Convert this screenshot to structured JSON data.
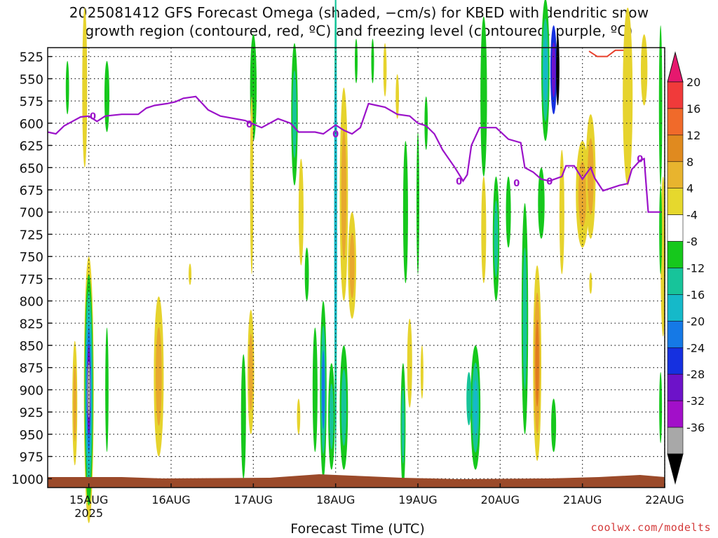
{
  "header": {
    "title_line1": "2025081412 GFS Forecast Omega (shaded, −cm/s) for KBED with dendritic snow",
    "title_line2": "growth region (contoured, red, ºC) and freezing level (contoured, purple, ºC)"
  },
  "footer": {
    "xlabel": "Forecast Time (UTC)",
    "credit": "coolwx.com/modelts"
  },
  "colors": {
    "yellow": "#e6d32d",
    "orange_light": "#e8a82e",
    "orange": "#e07b1f",
    "green": "#16c81c",
    "teal": "#17c49a",
    "cyan": "#15b9c9",
    "blue": "#1579e6",
    "dblue": "#1530e0",
    "purple": "#6d12c9",
    "violet": "#a20fc9",
    "gray": "#a8a8a8",
    "black": "#000000",
    "freezing": "#9b12c9",
    "dgz": "#e8402c",
    "terrain": "#9b4a2a"
  },
  "chart_data": {
    "type": "heatmap",
    "title": "2025081412 GFS Forecast Omega (shaded, −cm/s) for KBED with dendritic snow growth region (contoured, red, ºC) and freezing level (contoured, purple, ºC)",
    "xlabel": "Forecast Time (UTC)",
    "ylabel": "",
    "y_ticks": [
      "525",
      "550",
      "575",
      "600",
      "625",
      "650",
      "675",
      "700",
      "725",
      "750",
      "775",
      "800",
      "825",
      "850",
      "875",
      "900",
      "925",
      "950",
      "975",
      "1000"
    ],
    "y_range": [
      1010,
      515
    ],
    "x_ticks": [
      "15AUG",
      "16AUG",
      "17AUG",
      "18AUG",
      "19AUG",
      "20AUG",
      "21AUG",
      "22AUG"
    ],
    "x_year": "2025",
    "x_range_days": [
      14.5,
      22.0
    ],
    "grid": true,
    "colorbar": {
      "ticks": [
        "20",
        "16",
        "12",
        "8",
        "4",
        "-4",
        "-8",
        "-12",
        "-16",
        "-20",
        "-24",
        "-28",
        "-32",
        "-36"
      ],
      "bands": [
        "#e6186e",
        "#f03a3a",
        "#f06a2a",
        "#e08a1f",
        "#e8b42e",
        "#e6d82d",
        "#ffffff",
        "#16c81c",
        "#17c49a",
        "#15b9c9",
        "#1579e6",
        "#1530e0",
        "#6d12c9",
        "#a20fc9",
        "#a8a8a8",
        "#000000"
      ]
    },
    "freezing_level_label": "0",
    "freezing_level": [
      [
        14.5,
        610
      ],
      [
        14.6,
        612
      ],
      [
        14.7,
        603
      ],
      [
        14.8,
        598
      ],
      [
        14.9,
        593
      ],
      [
        15.0,
        592
      ],
      [
        15.1,
        598
      ],
      [
        15.2,
        592
      ],
      [
        15.4,
        590
      ],
      [
        15.6,
        590
      ],
      [
        15.7,
        583
      ],
      [
        15.8,
        580
      ],
      [
        15.95,
        578
      ],
      [
        16.05,
        576
      ],
      [
        16.15,
        572
      ],
      [
        16.3,
        570
      ],
      [
        16.45,
        585
      ],
      [
        16.6,
        592
      ],
      [
        16.9,
        597
      ],
      [
        17.0,
        601
      ],
      [
        17.1,
        605
      ],
      [
        17.2,
        600
      ],
      [
        17.3,
        595
      ],
      [
        17.45,
        600
      ],
      [
        17.55,
        610
      ],
      [
        17.75,
        610
      ],
      [
        17.85,
        612
      ],
      [
        18.0,
        602
      ],
      [
        18.1,
        608
      ],
      [
        18.2,
        612
      ],
      [
        18.3,
        605
      ],
      [
        18.4,
        578
      ],
      [
        18.5,
        580
      ],
      [
        18.6,
        582
      ],
      [
        18.75,
        590
      ],
      [
        18.9,
        592
      ],
      [
        19.0,
        600
      ],
      [
        19.1,
        603
      ],
      [
        19.2,
        612
      ],
      [
        19.3,
        630
      ],
      [
        19.45,
        650
      ],
      [
        19.55,
        665
      ],
      [
        19.6,
        658
      ],
      [
        19.65,
        625
      ],
      [
        19.75,
        605
      ],
      [
        19.95,
        605
      ],
      [
        20.1,
        618
      ],
      [
        20.25,
        622
      ],
      [
        20.3,
        650
      ],
      [
        20.4,
        655
      ],
      [
        20.5,
        663
      ],
      [
        20.6,
        665
      ],
      [
        20.75,
        660
      ],
      [
        20.8,
        648
      ],
      [
        20.9,
        648
      ],
      [
        21.0,
        663
      ],
      [
        21.1,
        650
      ],
      [
        21.15,
        662
      ],
      [
        21.25,
        676
      ],
      [
        21.45,
        670
      ],
      [
        21.55,
        668
      ],
      [
        21.6,
        652
      ],
      [
        21.7,
        642
      ],
      [
        21.75,
        640
      ],
      [
        21.8,
        700
      ],
      [
        21.95,
        700
      ]
    ]
  }
}
